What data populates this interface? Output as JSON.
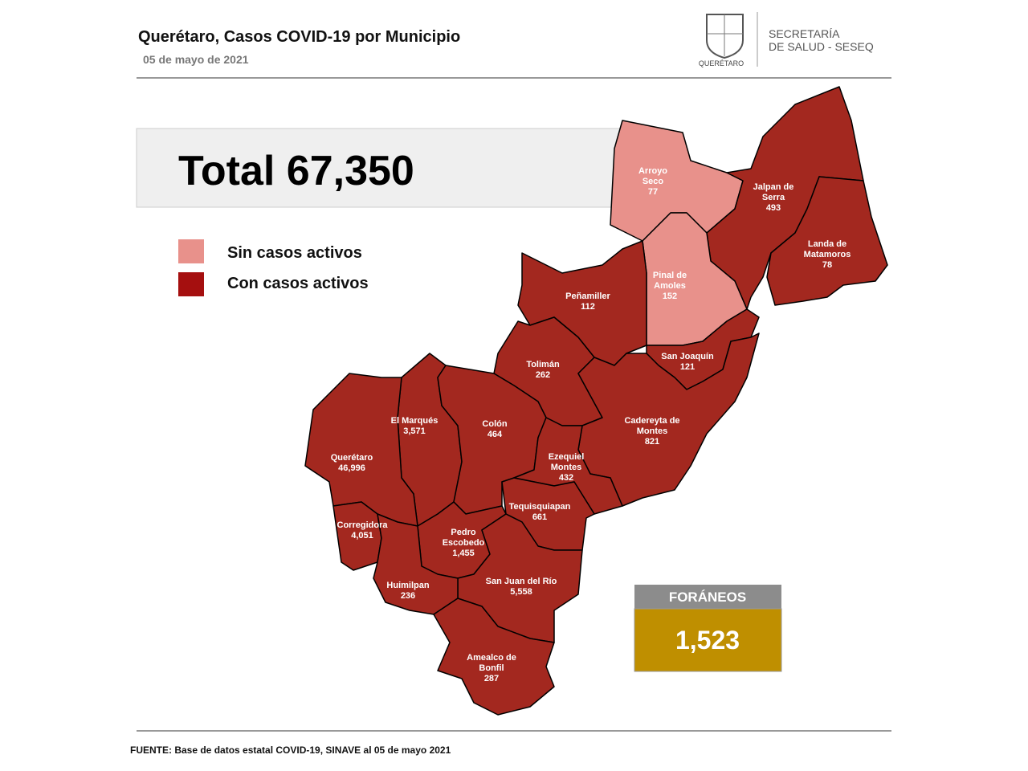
{
  "header": {
    "title": "Querétaro, Casos COVID-19 por Municipio",
    "date": "05 de mayo de 2021"
  },
  "logo": {
    "text": "QUERÉTARO"
  },
  "agency": {
    "lines": [
      "SECRETARÍA",
      "DE SALUD - SESEQ"
    ]
  },
  "total": "Total 67,350",
  "legend": [
    {
      "label": "Sin casos activos"
    },
    {
      "label": "Con casos activos"
    }
  ],
  "municipalities": [
    {
      "name_lines": [
        "Arroyo",
        "Seco"
      ],
      "cases": "77"
    },
    {
      "name_lines": [
        "Jalpan de",
        "Serra"
      ],
      "cases": "493"
    },
    {
      "name_lines": [
        "Landa de",
        "Matamoros"
      ],
      "cases": "78"
    },
    {
      "name_lines": [
        "Pinal de",
        "Amoles"
      ],
      "cases": "152"
    },
    {
      "name_lines": [
        "Peñamiller"
      ],
      "cases": "112"
    },
    {
      "name_lines": [
        "San Joaquín"
      ],
      "cases": "121"
    },
    {
      "name_lines": [
        "Tolimán"
      ],
      "cases": "262"
    },
    {
      "name_lines": [
        "Cadereyta de",
        "Montes"
      ],
      "cases": "821"
    },
    {
      "name_lines": [
        "El  Marqués"
      ],
      "cases": "3,571"
    },
    {
      "name_lines": [
        "Colón"
      ],
      "cases": "464"
    },
    {
      "name_lines": [
        "Ezequiel",
        "Montes"
      ],
      "cases": "432"
    },
    {
      "name_lines": [
        "Querétaro"
      ],
      "cases": "46,996"
    },
    {
      "name_lines": [
        "Tequisquiapan"
      ],
      "cases": "661"
    },
    {
      "name_lines": [
        "Corregidora"
      ],
      "cases": "4,051"
    },
    {
      "name_lines": [
        "Pedro",
        "Escobedo"
      ],
      "cases": "1,455"
    },
    {
      "name_lines": [
        "San Juan del Río"
      ],
      "cases": "5,558"
    },
    {
      "name_lines": [
        "Huimilpan"
      ],
      "cases": "236"
    },
    {
      "name_lines": [
        "Amealco de",
        "Bonfil"
      ],
      "cases": "287"
    }
  ],
  "foraneos": {
    "label": "FORÁNEOS",
    "value": "1,523"
  },
  "source": "FUENTE:  Base de datos estatal COVID-19,  SINAVE  al 05 de mayo 2021"
}
